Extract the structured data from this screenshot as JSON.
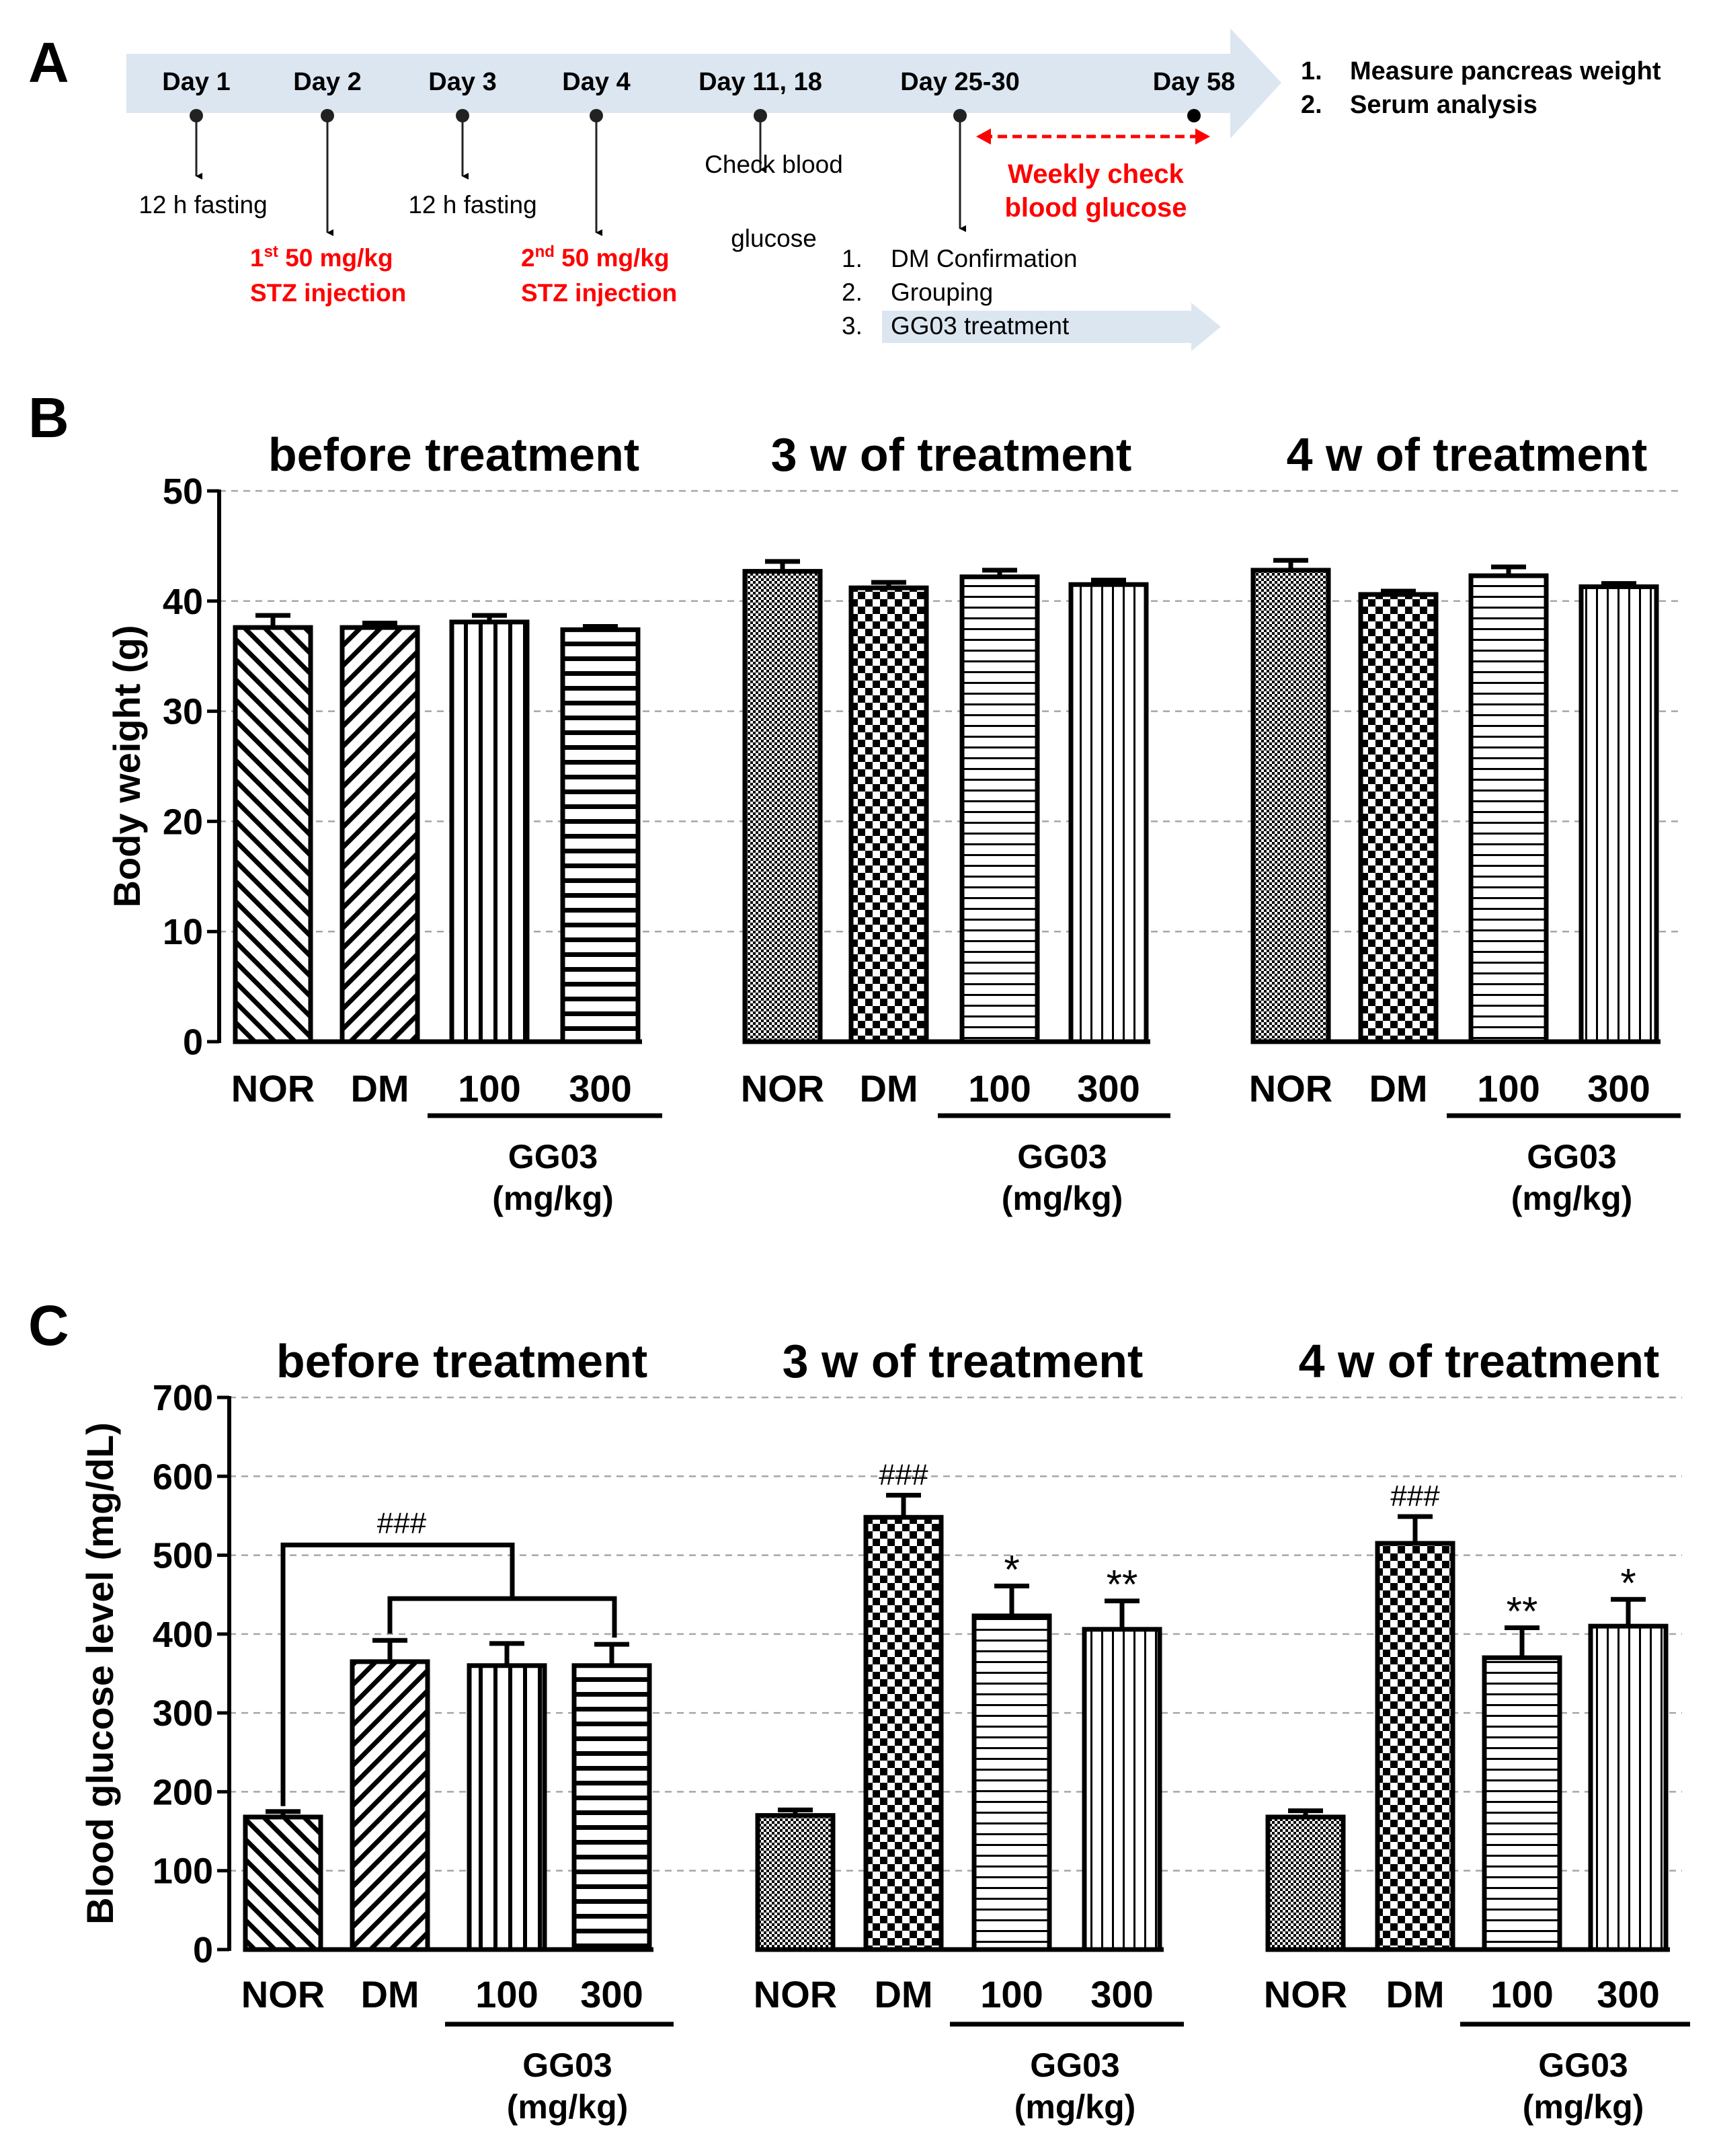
{
  "panel_a": {
    "letter": "A",
    "days": [
      {
        "label": "Day 1",
        "note": [
          "12 h fasting"
        ],
        "red": false
      },
      {
        "label": "Day 2",
        "note": [
          "1st 50 mg/kg",
          "STZ injection"
        ],
        "red": true
      },
      {
        "label": "Day 3",
        "note": [
          "12 h fasting"
        ],
        "red": false
      },
      {
        "label": "Day 4",
        "note": [
          "2nd 50 mg/kg",
          "STZ injection"
        ],
        "red": true
      },
      {
        "label": "Day 11, 18",
        "note": [
          "Check blood",
          "glucose"
        ],
        "red": false
      },
      {
        "label": "Day 25-30",
        "note": [],
        "red": false
      },
      {
        "label": "Day 58",
        "note": [],
        "red": false
      }
    ],
    "stz1_num": "1",
    "stz1_sup": "st",
    "stz1_rest": " 50 mg/kg",
    "stz1_line2": "STZ injection",
    "stz2_num": "2",
    "stz2_sup": "nd",
    "stz2_rest": " 50 mg/kg",
    "stz2_line2": "STZ injection",
    "weekly_check": [
      "Weekly check",
      "blood glucose"
    ],
    "steps": [
      {
        "num": "1.",
        "text": "DM Confirmation"
      },
      {
        "num": "2.",
        "text": "Grouping"
      },
      {
        "num": "3.",
        "text": "GG03 treatment"
      }
    ],
    "end_steps": [
      {
        "num": "1.",
        "text": "Measure pancreas weight"
      },
      {
        "num": "2.",
        "text": "Serum analysis"
      }
    ],
    "colors": {
      "arrow": "#dce6f1",
      "red": "#ff0000"
    }
  },
  "chart_data": [
    {
      "id": "B",
      "type": "bar",
      "letter": "B",
      "ylabel": "Body weight (g)",
      "ylim": [
        0,
        50
      ],
      "yticks": [
        0,
        10,
        20,
        30,
        40,
        50
      ],
      "group_label": [
        "GG03",
        "(mg/kg)"
      ],
      "groups": [
        {
          "title": "before treatment",
          "categories": [
            "NOR",
            "DM",
            "100",
            "300"
          ],
          "values": [
            37.6,
            37.6,
            38.1,
            37.4
          ],
          "errors": [
            1.1,
            0.4,
            0.6,
            0.3
          ],
          "patterns": [
            "diag-back",
            "diag-fwd",
            "vert",
            "horiz"
          ],
          "annotations": [
            "",
            "",
            "",
            ""
          ]
        },
        {
          "title": "3 w of treatment",
          "categories": [
            "NOR",
            "DM",
            "100",
            "300"
          ],
          "values": [
            42.7,
            41.2,
            42.2,
            41.5
          ],
          "errors": [
            0.9,
            0.5,
            0.6,
            0.4
          ],
          "patterns": [
            "dots",
            "checker",
            "horiz-fine",
            "vert-fine"
          ],
          "annotations": [
            "",
            "",
            "",
            ""
          ]
        },
        {
          "title": "4 w of treatment",
          "categories": [
            "NOR",
            "DM",
            "100",
            "300"
          ],
          "values": [
            42.8,
            40.6,
            42.3,
            41.3
          ],
          "errors": [
            0.9,
            0.3,
            0.8,
            0.3
          ],
          "patterns": [
            "dots",
            "checker",
            "horiz-fine",
            "vert-fine"
          ],
          "annotations": [
            "",
            "",
            "",
            ""
          ]
        }
      ]
    },
    {
      "id": "C",
      "type": "bar",
      "letter": "C",
      "ylabel": "Blood glucose level (mg/dL)",
      "ylim": [
        0,
        700
      ],
      "yticks": [
        0,
        100,
        200,
        300,
        400,
        500,
        600,
        700
      ],
      "group_label": [
        "GG03",
        "(mg/kg)"
      ],
      "bracket_label": "###",
      "groups": [
        {
          "title": "before treatment",
          "categories": [
            "NOR",
            "DM",
            "100",
            "300"
          ],
          "values": [
            168,
            365,
            360,
            360
          ],
          "errors": [
            7,
            27,
            28,
            27
          ],
          "patterns": [
            "diag-back",
            "diag-fwd",
            "vert",
            "horiz"
          ],
          "annotations": [
            "",
            "",
            "",
            ""
          ]
        },
        {
          "title": "3 w of treatment",
          "categories": [
            "NOR",
            "DM",
            "100",
            "300"
          ],
          "values": [
            170,
            548,
            423,
            406
          ],
          "errors": [
            7,
            28,
            38,
            36
          ],
          "patterns": [
            "dots",
            "checker",
            "horiz-fine",
            "vert-fine"
          ],
          "annotations": [
            "",
            "###",
            "*",
            "**"
          ]
        },
        {
          "title": "4 w of treatment",
          "categories": [
            "NOR",
            "DM",
            "100",
            "300"
          ],
          "values": [
            168,
            515,
            370,
            410
          ],
          "errors": [
            8,
            34,
            38,
            34
          ],
          "patterns": [
            "dots",
            "checker",
            "horiz-fine",
            "vert-fine"
          ],
          "annotations": [
            "",
            "###",
            "**",
            "*"
          ]
        }
      ]
    }
  ]
}
